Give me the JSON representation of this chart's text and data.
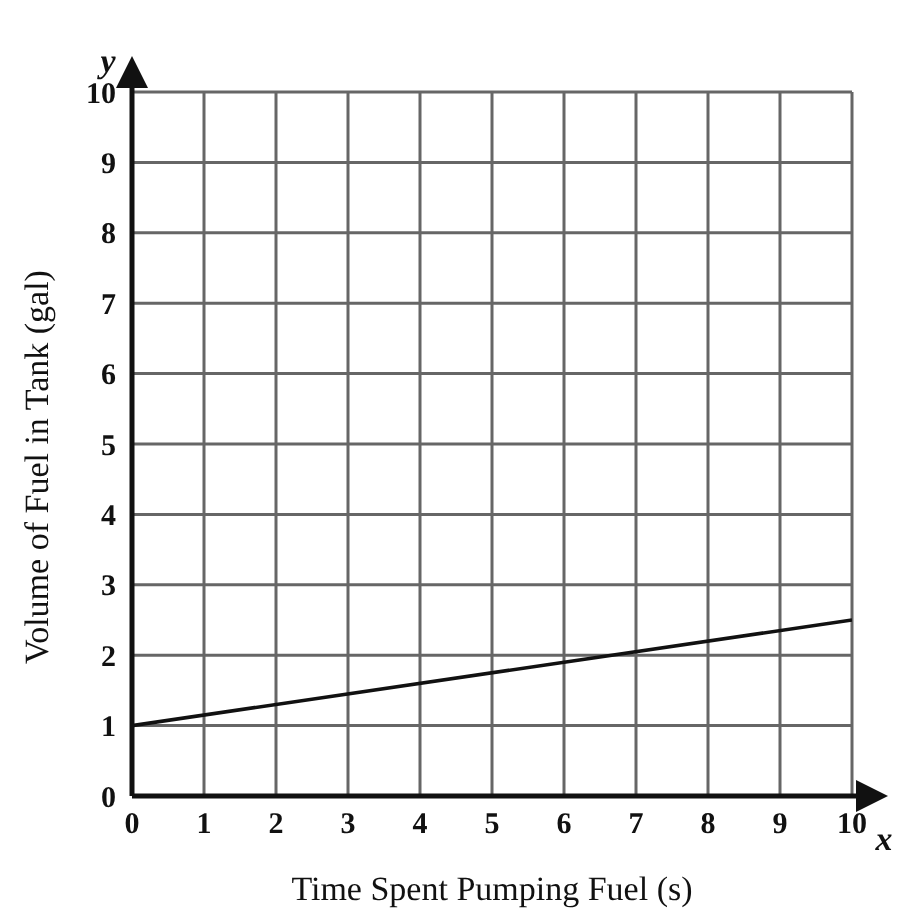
{
  "chart_data": {
    "type": "line",
    "xlabel": "Time Spent Pumping Fuel (s)",
    "ylabel": "Volume of Fuel in Tank (gal)",
    "x": [
      0,
      10
    ],
    "series": [
      {
        "color": "#111111",
        "values": [
          1,
          2.5
        ]
      }
    ],
    "xlim": [
      0,
      10
    ],
    "xticks": [
      0,
      1,
      2,
      3,
      4,
      5,
      6,
      7,
      8,
      9,
      10
    ],
    "ylim": [
      0,
      10
    ],
    "yticks": [
      0,
      1,
      2,
      3,
      4,
      5,
      6,
      7,
      8,
      9,
      10
    ],
    "grid": true,
    "marker": "none",
    "line_style": "solid",
    "legend": false,
    "annotations": [
      "x",
      "y"
    ]
  }
}
